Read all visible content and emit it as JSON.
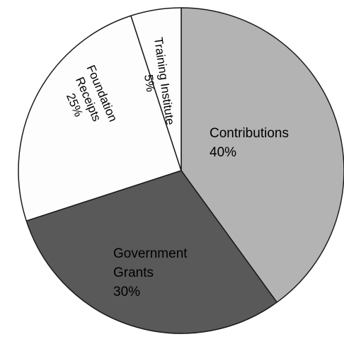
{
  "chart_data": {
    "type": "pie",
    "title": "",
    "start": "top",
    "direction": "clockwise",
    "slices": [
      {
        "label_lines": [
          "Contributions",
          "40%"
        ],
        "name": "Contributions",
        "value": 40,
        "color": "#b3b3b3"
      },
      {
        "label_lines": [
          "Government",
          "Grants",
          "30%"
        ],
        "name": "Government Grants",
        "value": 30,
        "color": "#595959"
      },
      {
        "label_lines": [
          "Foundation",
          "Receipts",
          "25%"
        ],
        "name": "Foundation Receipts",
        "value": 25,
        "color": "#fdfdfd"
      },
      {
        "label_lines": [
          "Training Institute",
          "5%"
        ],
        "name": "Training Institute",
        "value": 5,
        "color": "#fdfdfd"
      }
    ]
  }
}
